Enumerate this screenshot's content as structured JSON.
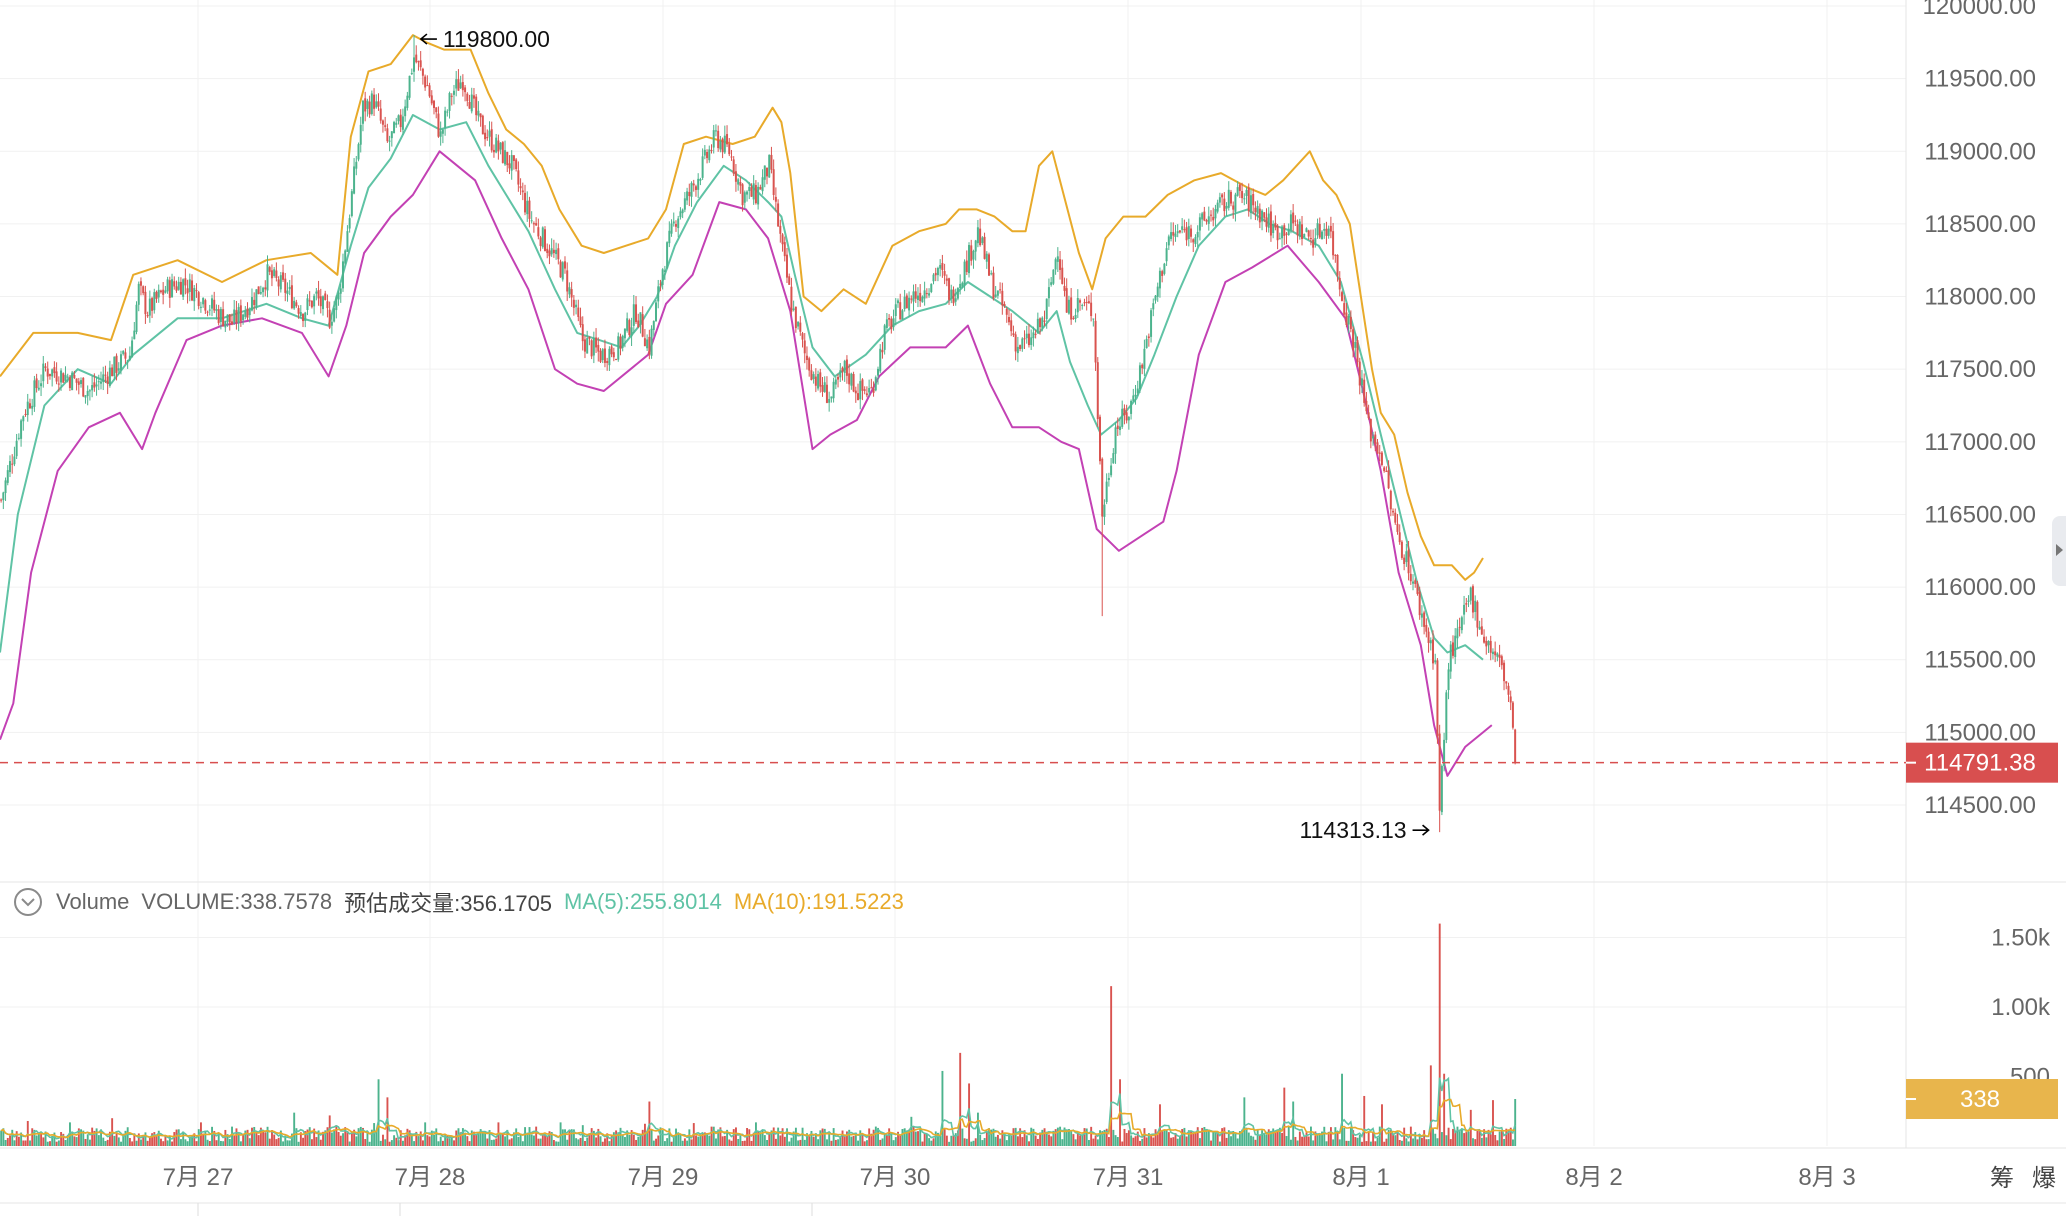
{
  "chart_data": {
    "type": "candlestick",
    "price_axis": {
      "ticks": [
        "120000.00",
        "119500.00",
        "119000.00",
        "118500.00",
        "118000.00",
        "117500.00",
        "117000.00",
        "116500.00",
        "116000.00",
        "115500.00",
        "115000.00",
        "114500.00"
      ],
      "range": [
        114200,
        120050
      ]
    },
    "x_axis": {
      "ticks": [
        "7月 27",
        "7月 28",
        "7月 29",
        "7月 30",
        "7月 31",
        "8月 1",
        "8月 2",
        "8月 3"
      ]
    },
    "annotations": {
      "high_label": "119800.00",
      "low_label": "114313.13",
      "high_value": 119800,
      "low_value": 114313.13
    },
    "current_price": {
      "value": 114791.38,
      "label": "114791.38"
    },
    "price_path": [
      [
        0,
        116600
      ],
      [
        10,
        117200
      ],
      [
        20,
        117500
      ],
      [
        30,
        117450
      ],
      [
        40,
        117350
      ],
      [
        50,
        117500
      ],
      [
        58,
        117600
      ],
      [
        62,
        118050
      ],
      [
        66,
        117900
      ],
      [
        74,
        118050
      ],
      [
        82,
        118100
      ],
      [
        90,
        118000
      ],
      [
        98,
        117880
      ],
      [
        104,
        117820
      ],
      [
        112,
        117950
      ],
      [
        120,
        118150
      ],
      [
        128,
        118050
      ],
      [
        136,
        117900
      ],
      [
        142,
        118000
      ],
      [
        148,
        117850
      ],
      [
        152,
        118000
      ],
      [
        158,
        118700
      ],
      [
        163,
        119300
      ],
      [
        168,
        119350
      ],
      [
        174,
        119050
      ],
      [
        180,
        119200
      ],
      [
        186,
        119650
      ],
      [
        192,
        119450
      ],
      [
        198,
        119100
      ],
      [
        203,
        119400
      ],
      [
        208,
        119500
      ],
      [
        215,
        119200
      ],
      [
        222,
        119050
      ],
      [
        230,
        118900
      ],
      [
        238,
        118550
      ],
      [
        246,
        118350
      ],
      [
        254,
        118150
      ],
      [
        262,
        117700
      ],
      [
        270,
        117600
      ],
      [
        278,
        117650
      ],
      [
        286,
        117900
      ],
      [
        292,
        117650
      ],
      [
        298,
        118200
      ],
      [
        304,
        118550
      ],
      [
        310,
        118700
      ],
      [
        316,
        118900
      ],
      [
        322,
        119100
      ],
      [
        328,
        119000
      ],
      [
        334,
        118700
      ],
      [
        340,
        118700
      ],
      [
        346,
        118900
      ],
      [
        352,
        118300
      ],
      [
        356,
        117950
      ],
      [
        362,
        117600
      ],
      [
        368,
        117400
      ],
      [
        374,
        117300
      ],
      [
        380,
        117500
      ],
      [
        386,
        117350
      ],
      [
        392,
        117350
      ],
      [
        398,
        117750
      ],
      [
        404,
        117900
      ],
      [
        410,
        118000
      ],
      [
        416,
        118050
      ],
      [
        422,
        118200
      ],
      [
        428,
        118000
      ],
      [
        434,
        118200
      ],
      [
        440,
        118450
      ],
      [
        446,
        118100
      ],
      [
        452,
        117900
      ],
      [
        458,
        117650
      ],
      [
        464,
        117700
      ],
      [
        470,
        117850
      ],
      [
        476,
        118350
      ],
      [
        480,
        117900
      ],
      [
        486,
        117950
      ],
      [
        492,
        117900
      ],
      [
        496,
        116500
      ],
      [
        502,
        117100
      ],
      [
        508,
        117200
      ],
      [
        514,
        117550
      ],
      [
        520,
        118000
      ],
      [
        526,
        118400
      ],
      [
        532,
        118450
      ],
      [
        538,
        118450
      ],
      [
        544,
        118550
      ],
      [
        552,
        118650
      ],
      [
        558,
        118700
      ],
      [
        566,
        118600
      ],
      [
        574,
        118450
      ],
      [
        582,
        118500
      ],
      [
        590,
        118400
      ],
      [
        598,
        118500
      ],
      [
        604,
        118000
      ],
      [
        610,
        117650
      ],
      [
        616,
        117100
      ],
      [
        622,
        116900
      ],
      [
        628,
        116400
      ],
      [
        634,
        116150
      ],
      [
        640,
        115800
      ],
      [
        646,
        115500
      ],
      [
        648,
        114450
      ],
      [
        652,
        115500
      ],
      [
        656,
        115650
      ],
      [
        662,
        115950
      ],
      [
        668,
        115650
      ],
      [
        672,
        115550
      ],
      [
        676,
        115450
      ],
      [
        680,
        115200
      ],
      [
        682,
        114800
      ]
    ],
    "bollinger": {
      "upper": [
        [
          0,
          117450
        ],
        [
          15,
          117750
        ],
        [
          35,
          117750
        ],
        [
          50,
          117700
        ],
        [
          60,
          118150
        ],
        [
          80,
          118250
        ],
        [
          100,
          118100
        ],
        [
          120,
          118250
        ],
        [
          140,
          118300
        ],
        [
          152,
          118150
        ],
        [
          158,
          119100
        ],
        [
          166,
          119550
        ],
        [
          176,
          119600
        ],
        [
          186,
          119800
        ],
        [
          192,
          119750
        ],
        [
          200,
          119700
        ],
        [
          212,
          119700
        ],
        [
          220,
          119400
        ],
        [
          228,
          119150
        ],
        [
          236,
          119050
        ],
        [
          244,
          118900
        ],
        [
          252,
          118600
        ],
        [
          262,
          118350
        ],
        [
          272,
          118300
        ],
        [
          282,
          118350
        ],
        [
          292,
          118400
        ],
        [
          300,
          118600
        ],
        [
          308,
          119050
        ],
        [
          318,
          119100
        ],
        [
          330,
          119050
        ],
        [
          340,
          119100
        ],
        [
          348,
          119300
        ],
        [
          352,
          119200
        ],
        [
          356,
          118850
        ],
        [
          362,
          118000
        ],
        [
          370,
          117900
        ],
        [
          380,
          118050
        ],
        [
          390,
          117950
        ],
        [
          402,
          118350
        ],
        [
          414,
          118450
        ],
        [
          426,
          118500
        ],
        [
          432,
          118600
        ],
        [
          440,
          118600
        ],
        [
          448,
          118550
        ],
        [
          456,
          118450
        ],
        [
          462,
          118450
        ],
        [
          468,
          118900
        ],
        [
          474,
          119000
        ],
        [
          480,
          118650
        ],
        [
          486,
          118300
        ],
        [
          492,
          118050
        ],
        [
          498,
          118400
        ],
        [
          506,
          118550
        ],
        [
          516,
          118550
        ],
        [
          526,
          118700
        ],
        [
          538,
          118800
        ],
        [
          550,
          118850
        ],
        [
          562,
          118750
        ],
        [
          570,
          118700
        ],
        [
          578,
          118800
        ],
        [
          584,
          118900
        ],
        [
          590,
          119000
        ],
        [
          596,
          118800
        ],
        [
          602,
          118700
        ],
        [
          608,
          118500
        ],
        [
          614,
          117900
        ],
        [
          618,
          117500
        ],
        [
          622,
          117200
        ],
        [
          628,
          117050
        ],
        [
          634,
          116650
        ],
        [
          640,
          116350
        ],
        [
          646,
          116150
        ],
        [
          654,
          116150
        ],
        [
          660,
          116050
        ],
        [
          664,
          116100
        ],
        [
          668,
          116200
        ]
      ],
      "middle": [
        [
          0,
          115550
        ],
        [
          8,
          116500
        ],
        [
          20,
          117250
        ],
        [
          35,
          117500
        ],
        [
          50,
          117400
        ],
        [
          60,
          117600
        ],
        [
          80,
          117850
        ],
        [
          100,
          117850
        ],
        [
          120,
          117950
        ],
        [
          136,
          117850
        ],
        [
          148,
          117800
        ],
        [
          158,
          118350
        ],
        [
          166,
          118750
        ],
        [
          176,
          118950
        ],
        [
          186,
          119250
        ],
        [
          198,
          119150
        ],
        [
          210,
          119200
        ],
        [
          220,
          118900
        ],
        [
          228,
          118700
        ],
        [
          238,
          118450
        ],
        [
          250,
          118050
        ],
        [
          260,
          117750
        ],
        [
          270,
          117700
        ],
        [
          280,
          117650
        ],
        [
          288,
          117800
        ],
        [
          296,
          118000
        ],
        [
          304,
          118350
        ],
        [
          314,
          118650
        ],
        [
          326,
          118900
        ],
        [
          336,
          118800
        ],
        [
          346,
          118650
        ],
        [
          352,
          118550
        ],
        [
          358,
          118150
        ],
        [
          366,
          117650
        ],
        [
          376,
          117450
        ],
        [
          390,
          117600
        ],
        [
          402,
          117800
        ],
        [
          414,
          117900
        ],
        [
          426,
          117950
        ],
        [
          436,
          118100
        ],
        [
          446,
          118000
        ],
        [
          456,
          117900
        ],
        [
          468,
          117750
        ],
        [
          476,
          117900
        ],
        [
          482,
          117550
        ],
        [
          490,
          117250
        ],
        [
          496,
          117050
        ],
        [
          504,
          117150
        ],
        [
          512,
          117300
        ],
        [
          520,
          117600
        ],
        [
          530,
          118000
        ],
        [
          540,
          118350
        ],
        [
          552,
          118550
        ],
        [
          562,
          118600
        ],
        [
          572,
          118500
        ],
        [
          582,
          118450
        ],
        [
          594,
          118350
        ],
        [
          604,
          118100
        ],
        [
          614,
          117550
        ],
        [
          622,
          117050
        ],
        [
          630,
          116550
        ],
        [
          638,
          116050
        ],
        [
          646,
          115650
        ],
        [
          652,
          115550
        ],
        [
          660,
          115600
        ],
        [
          668,
          115500
        ]
      ],
      "lower": [
        [
          0,
          114950
        ],
        [
          6,
          115200
        ],
        [
          14,
          116100
        ],
        [
          26,
          116800
        ],
        [
          40,
          117100
        ],
        [
          54,
          117200
        ],
        [
          64,
          116950
        ],
        [
          70,
          117200
        ],
        [
          84,
          117700
        ],
        [
          100,
          117800
        ],
        [
          118,
          117850
        ],
        [
          136,
          117750
        ],
        [
          148,
          117450
        ],
        [
          156,
          117800
        ],
        [
          164,
          118300
        ],
        [
          176,
          118550
        ],
        [
          186,
          118700
        ],
        [
          198,
          119000
        ],
        [
          214,
          118800
        ],
        [
          226,
          118400
        ],
        [
          238,
          118050
        ],
        [
          250,
          117500
        ],
        [
          260,
          117400
        ],
        [
          272,
          117350
        ],
        [
          284,
          117500
        ],
        [
          292,
          117600
        ],
        [
          300,
          117950
        ],
        [
          312,
          118150
        ],
        [
          324,
          118650
        ],
        [
          336,
          118600
        ],
        [
          346,
          118400
        ],
        [
          356,
          117900
        ],
        [
          366,
          116950
        ],
        [
          374,
          117050
        ],
        [
          386,
          117150
        ],
        [
          396,
          117450
        ],
        [
          410,
          117650
        ],
        [
          426,
          117650
        ],
        [
          436,
          117800
        ],
        [
          446,
          117400
        ],
        [
          456,
          117100
        ],
        [
          468,
          117100
        ],
        [
          478,
          117000
        ],
        [
          486,
          116950
        ],
        [
          494,
          116400
        ],
        [
          504,
          116250
        ],
        [
          514,
          116350
        ],
        [
          524,
          116450
        ],
        [
          530,
          116800
        ],
        [
          540,
          117600
        ],
        [
          552,
          118100
        ],
        [
          564,
          118200
        ],
        [
          580,
          118350
        ],
        [
          594,
          118100
        ],
        [
          606,
          117850
        ],
        [
          614,
          117350
        ],
        [
          622,
          116800
        ],
        [
          630,
          116100
        ],
        [
          640,
          115600
        ],
        [
          646,
          115050
        ],
        [
          652,
          114700
        ],
        [
          660,
          114900
        ],
        [
          668,
          115000
        ],
        [
          672,
          115050
        ]
      ]
    },
    "volume_axis": {
      "ticks": [
        "1.50k",
        "1.00k",
        "500"
      ],
      "current_label": "338",
      "current_value": 338
    },
    "volume_spikes": [
      [
        12,
        180
      ],
      [
        31,
        170
      ],
      [
        50,
        200
      ],
      [
        90,
        170
      ],
      [
        132,
        240
      ],
      [
        148,
        220
      ],
      [
        151,
        150
      ],
      [
        168,
        165
      ],
      [
        170,
        480
      ],
      [
        174,
        350
      ],
      [
        191,
        170
      ],
      [
        224,
        170
      ],
      [
        252,
        170
      ],
      [
        262,
        150
      ],
      [
        290,
        160
      ],
      [
        292,
        320
      ],
      [
        312,
        165
      ],
      [
        340,
        170
      ],
      [
        410,
        210
      ],
      [
        424,
        540
      ],
      [
        432,
        670
      ],
      [
        436,
        450
      ],
      [
        440,
        240
      ],
      [
        500,
        1150
      ],
      [
        504,
        480
      ],
      [
        522,
        300
      ],
      [
        560,
        350
      ],
      [
        578,
        420
      ],
      [
        582,
        320
      ],
      [
        604,
        520
      ],
      [
        614,
        360
      ],
      [
        622,
        300
      ],
      [
        644,
        580
      ],
      [
        648,
        1600
      ],
      [
        650,
        520
      ],
      [
        662,
        260
      ],
      [
        672,
        330
      ]
    ]
  },
  "legend": {
    "name": "Volume",
    "volume": "VOLUME:338.7578",
    "estimate": "预估成交量:356.1705",
    "ma5": "MA(5):255.8014",
    "ma10": "MA(10):191.5223"
  },
  "buttons": {
    "chips": "筹",
    "liquidation": "爆"
  },
  "colors": {
    "up": "#4cb38d",
    "down": "#d9534f",
    "boll_upper": "#e8aa2a",
    "boll_mid": "#5fc3a5",
    "boll_lower": "#c341b4",
    "current_price_bg": "#d84f4f",
    "volume_label_bg": "#e8b54c",
    "grid": "#f1f1f1",
    "axis_text": "#666666"
  }
}
